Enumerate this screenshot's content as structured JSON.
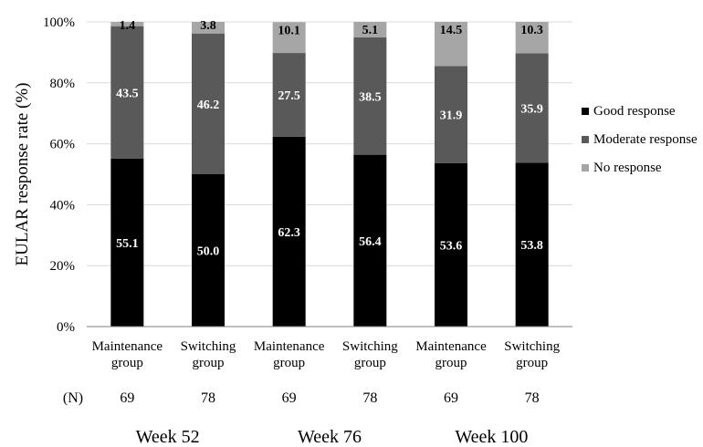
{
  "chart_data": {
    "type": "bar",
    "stacked": true,
    "ylabel": "EULAR response rate (%)",
    "ylim": [
      0,
      100
    ],
    "yticks": [
      "0%",
      "20%",
      "40%",
      "60%",
      "80%",
      "100%"
    ],
    "grid": true,
    "legend_position": "right",
    "categories": [
      [
        "Maintenance",
        "group"
      ],
      [
        "Switching",
        "group"
      ],
      [
        "Maintenance",
        "group"
      ],
      [
        "Switching",
        "group"
      ],
      [
        "Maintenance",
        "group"
      ],
      [
        "Switching",
        "group"
      ]
    ],
    "n_label": "(N)",
    "n_values": [
      "69",
      "78",
      "69",
      "78",
      "69",
      "78"
    ],
    "groups": [
      "Week 52",
      "Week 76",
      "Week 100"
    ],
    "series": [
      {
        "name": "Good response",
        "color": "#000000",
        "values": [
          55.1,
          50.0,
          62.3,
          56.4,
          53.6,
          53.8
        ],
        "labels": [
          "55.1",
          "50.0",
          "62.3",
          "56.4",
          "53.6",
          "53.8"
        ]
      },
      {
        "name": "Moderate response",
        "color": "#595959",
        "values": [
          43.5,
          46.2,
          27.5,
          38.5,
          31.9,
          35.9
        ],
        "labels": [
          "43.5",
          "46.2",
          "27.5",
          "38.5",
          "31.9",
          "35.9"
        ]
      },
      {
        "name": "No response",
        "color": "#a6a6a6",
        "values": [
          1.4,
          3.8,
          10.1,
          5.1,
          14.5,
          10.3
        ],
        "labels": [
          "1.4",
          "3.8",
          "10.1",
          "5.1",
          "14.5",
          "10.3"
        ]
      }
    ]
  }
}
